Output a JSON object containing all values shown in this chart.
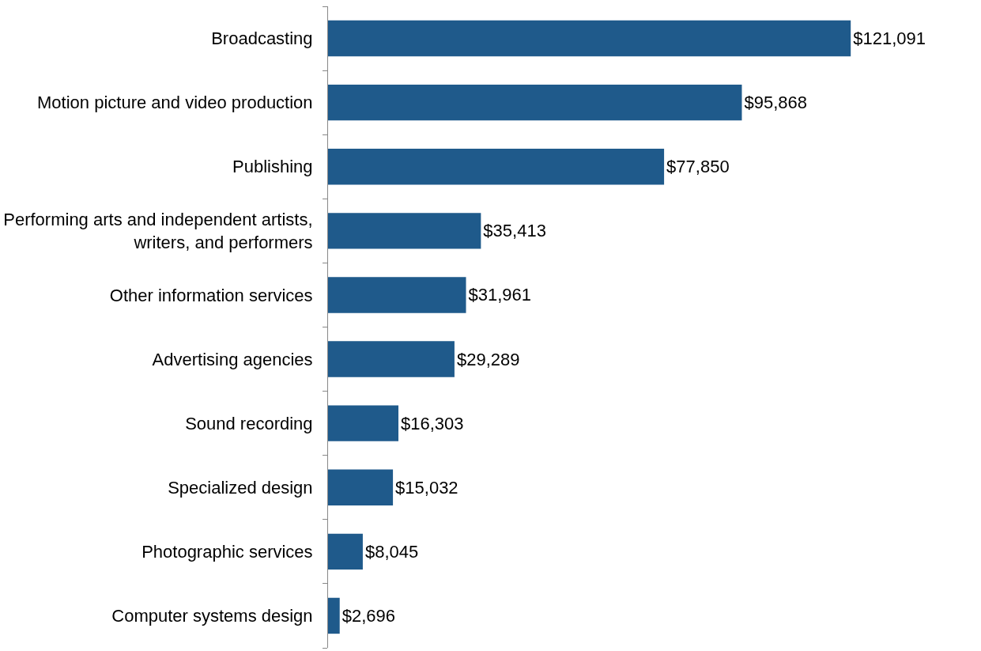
{
  "chart_data": {
    "type": "bar",
    "orientation": "horizontal",
    "categories": [
      "Broadcasting",
      "Motion picture and video production",
      "Publishing",
      "Performing arts and independent artists, writers, and performers",
      "Other information services",
      "Advertising agencies",
      "Sound recording",
      "Specialized design",
      "Photographic services",
      "Computer systems design"
    ],
    "values": [
      121091,
      95868,
      77850,
      35413,
      31961,
      29289,
      16303,
      15032,
      8045,
      2696
    ],
    "value_labels": [
      "$121,091",
      "$95,868",
      "$77,850",
      "$35,413",
      "$31,961",
      "$29,289",
      "$16,303",
      "$15,032",
      "$8,045",
      "$2,696"
    ],
    "color": "#1f5a8b",
    "tick_labels": "y"
  }
}
